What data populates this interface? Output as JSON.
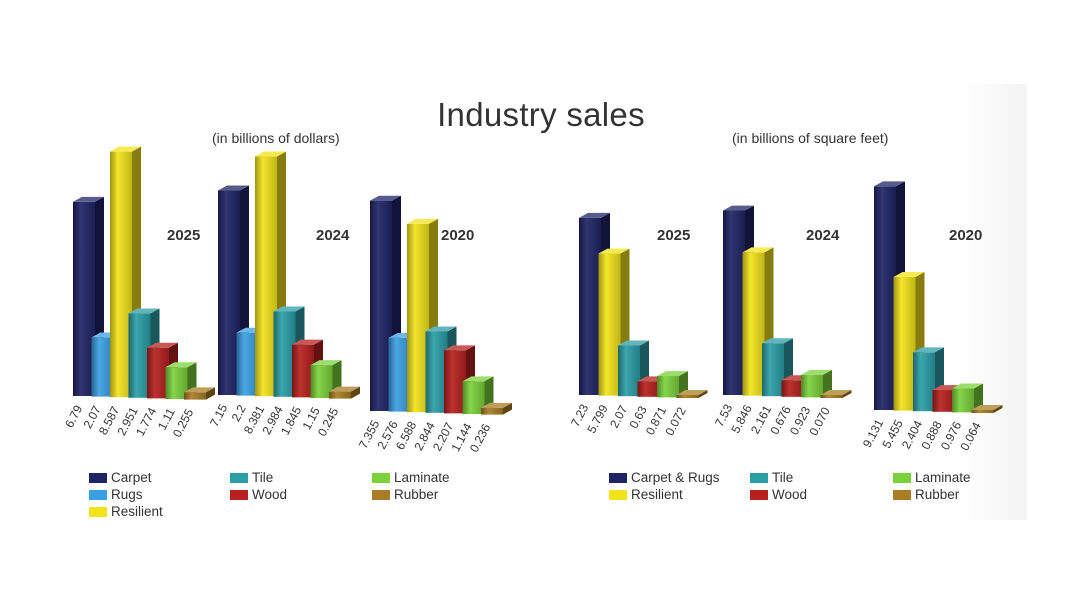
{
  "title": "Industry sales",
  "colors": {
    "navy": "#1f2466",
    "lightblue": "#3a9fe3",
    "yellow": "#f3e31a",
    "teal": "#2b9ea6",
    "red": "#b6201e",
    "green": "#7bd13b",
    "brown": "#a97d25"
  },
  "chart_data": [
    {
      "type": "bar",
      "subtitle": "(in billions of dollars)",
      "categories": [
        "Carpet",
        "Rugs",
        "Resilient",
        "Tile",
        "Wood",
        "Laminate",
        "Rubber"
      ],
      "series": [
        {
          "name": "2025",
          "values": [
            6.79,
            2.07,
            8.587,
            2.951,
            1.774,
            1.11,
            0.255
          ],
          "labels": [
            "6.79",
            "2.07",
            "8.587",
            "2.951",
            "1.774",
            "1.11",
            "0.255"
          ]
        },
        {
          "name": "2024",
          "values": [
            7.15,
            2.2,
            8.381,
            2.984,
            1.845,
            1.15,
            0.245
          ],
          "labels": [
            "7.15",
            "2.2",
            "8.381",
            "2.984",
            "1.845",
            "1.15",
            "0.245"
          ]
        },
        {
          "name": "2020",
          "values": [
            7.355,
            2.576,
            6.588,
            2.844,
            2.207,
            1.144,
            0.236
          ],
          "labels": [
            "7.355",
            "2.576",
            "6.588",
            "2.844",
            "2.207",
            "1.144",
            "0.236"
          ]
        }
      ],
      "legend": [
        {
          "label": "Carpet",
          "color": "#1f2466"
        },
        {
          "label": "Rugs",
          "color": "#3a9fe3"
        },
        {
          "label": "Resilient",
          "color": "#f3e31a"
        },
        {
          "label": "Tile",
          "color": "#2b9ea6"
        },
        {
          "label": "Wood",
          "color": "#b6201e"
        },
        {
          "label": "Laminate",
          "color": "#7bd13b"
        },
        {
          "label": "Rubber",
          "color": "#a97d25"
        }
      ]
    },
    {
      "type": "bar",
      "subtitle": "(in billions of square feet)",
      "categories": [
        "Carpet & Rugs",
        "Resilient",
        "Tile",
        "Wood",
        "Laminate",
        "Rubber"
      ],
      "series": [
        {
          "name": "2025",
          "values": [
            7.23,
            5.799,
            2.07,
            0.63,
            0.871,
            0.072
          ],
          "labels": [
            "7.23",
            "5.799",
            "2.07",
            "0.63",
            "0.871",
            "0.072"
          ]
        },
        {
          "name": "2024",
          "values": [
            7.53,
            5.846,
            2.161,
            0.676,
            0.923,
            0.07
          ],
          "labels": [
            "7.53",
            "5.846",
            "2.161",
            "0.676",
            "0.923",
            "0.070"
          ]
        },
        {
          "name": "2020",
          "values": [
            9.131,
            5.455,
            2.404,
            0.888,
            0.976,
            0.064
          ],
          "labels": [
            "9.131",
            "5.455",
            "2.404",
            "0.888",
            "0.976",
            "0.064"
          ]
        }
      ],
      "legend": [
        {
          "label": "Carpet & Rugs",
          "color": "#1f2466"
        },
        {
          "label": "Resilient",
          "color": "#f3e31a"
        },
        {
          "label": "Tile",
          "color": "#2b9ea6"
        },
        {
          "label": "Wood",
          "color": "#b6201e"
        },
        {
          "label": "Laminate",
          "color": "#7bd13b"
        },
        {
          "label": "Rubber",
          "color": "#a97d25"
        }
      ]
    }
  ]
}
